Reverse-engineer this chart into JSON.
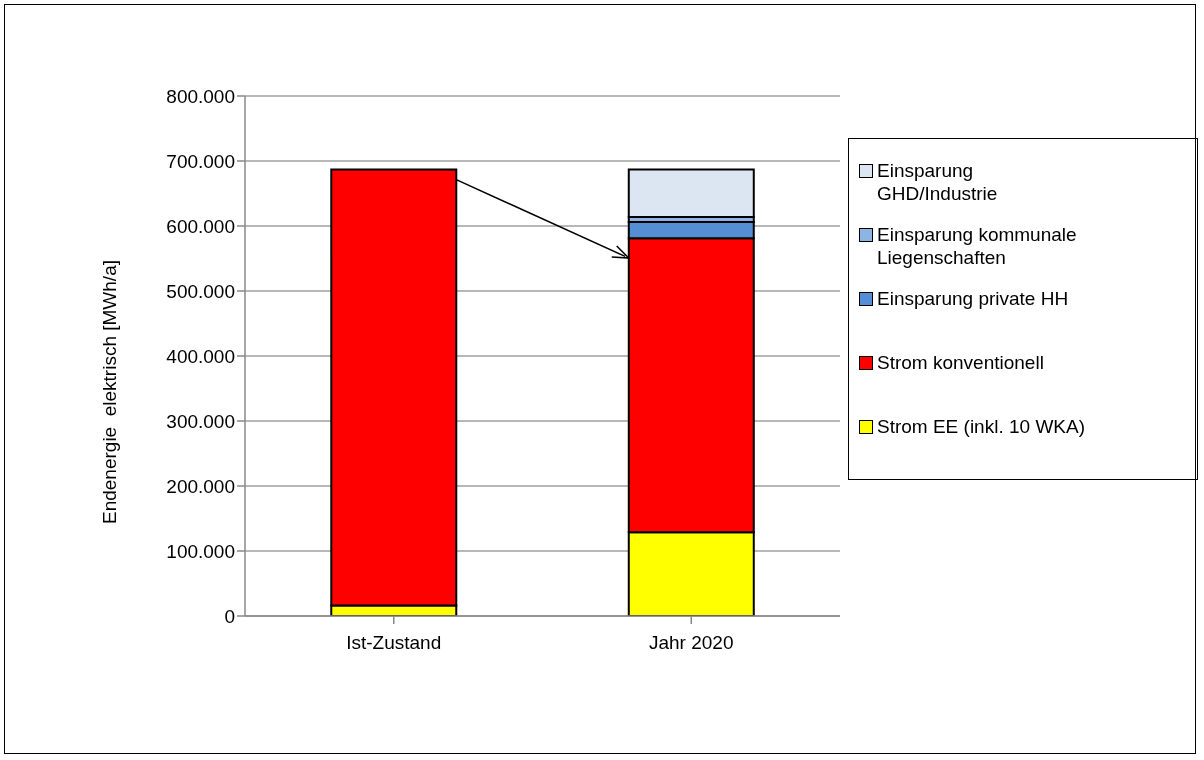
{
  "chart_data": {
    "type": "bar",
    "stacked": true,
    "ylabel": "Endenergie  elektrisch [MWh/a]",
    "categories": [
      "Ist-Zustand",
      "Jahr 2020"
    ],
    "series": [
      {
        "name": "Strom EE (inkl. 10 WKA)",
        "color": "#ffff00",
        "values": [
          16000,
          129000
        ]
      },
      {
        "name": "Strom konventionell",
        "color": "#ff0000",
        "values": [
          671000,
          452000
        ]
      },
      {
        "name": "Einsparung private HH",
        "color": "#558ed5",
        "values": [
          0,
          25000
        ]
      },
      {
        "name": "Einsparung kommunale Liegenschaften",
        "color": "#8eb4e3",
        "values": [
          0,
          8000
        ]
      },
      {
        "name": "Einsparung\nGHD/Industrie",
        "color": "#dce6f2",
        "values": [
          0,
          73000
        ]
      }
    ],
    "ylim": [
      0,
      800000
    ],
    "yticks": [
      {
        "value": 0,
        "label": "0"
      },
      {
        "value": 100000,
        "label": "100.000"
      },
      {
        "value": 200000,
        "label": "200.000"
      },
      {
        "value": 300000,
        "label": "300.000"
      },
      {
        "value": 400000,
        "label": "400.000"
      },
      {
        "value": 500000,
        "label": "500.000"
      },
      {
        "value": 600000,
        "label": "600.000"
      },
      {
        "value": 700000,
        "label": "700.000"
      },
      {
        "value": 800000,
        "label": "800.000"
      }
    ],
    "grid": "y",
    "legend": "right"
  }
}
